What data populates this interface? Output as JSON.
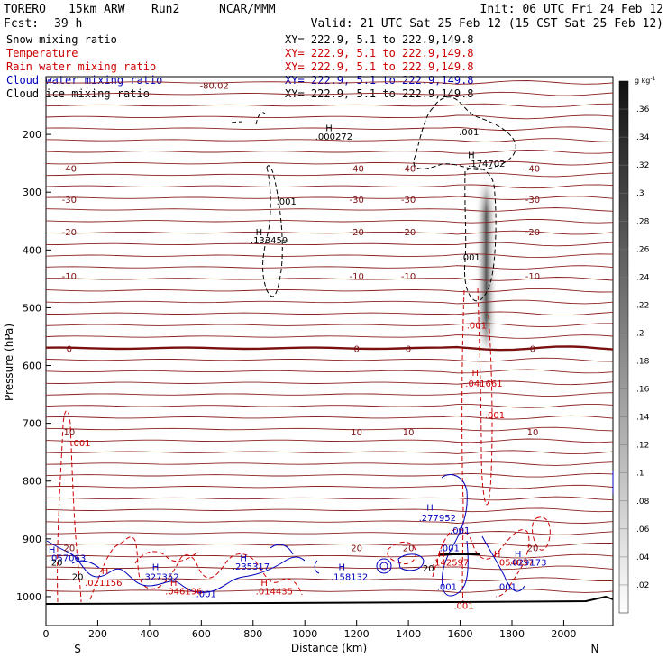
{
  "header": {
    "model": "TORERO",
    "resolution": "15km ARW",
    "run": "Run2",
    "org": "NCAR/MMM",
    "init": "Init: 06 UTC Fri 24 Feb 12",
    "fcst_label": "Fcst:",
    "fcst_value": "39 h",
    "valid": "Valid: 21 UTC Sat 25 Feb 12 (15 CST Sat 25 Feb 12)"
  },
  "legend": [
    {
      "label": "Snow mixing ratio",
      "xy": "XY= 222.9,  5.1 to 222.9,149.8",
      "color": "#000000"
    },
    {
      "label": "Temperature",
      "xy": "XY= 222.9,  5.1 to 222.9,149.8",
      "color": "#cc0000"
    },
    {
      "label": "Rain water mixing ratio",
      "xy": "XY= 222.9,  5.1 to 222.9,149.8",
      "color": "#cc0000"
    },
    {
      "label": "Cloud water mixing ratio",
      "xy": "XY= 222.9,  5.1 to 222.9,149.8",
      "color": "#0000bb"
    },
    {
      "label": "Cloud ice mixing ratio",
      "xy": "XY= 222.9,  5.1 to 222.9,149.8",
      "color": "#000000"
    }
  ],
  "colorbar": {
    "unit": "g kg",
    "unit_exp": "-1",
    "ticks": [
      ".02",
      ".04",
      ".06",
      ".08",
      ".1",
      ".12",
      ".14",
      ".16",
      ".18",
      ".2",
      ".22",
      ".24",
      ".26",
      ".28",
      ".3",
      ".32",
      ".34",
      ".36"
    ]
  },
  "chart_data": {
    "type": "contour-cross-section",
    "xlabel": "Distance (km)",
    "ylabel": "Pressure (hPa)",
    "x_ticks": [
      "0",
      "200",
      "400",
      "600",
      "800",
      "1000",
      "1200",
      "1400",
      "1600",
      "1800",
      "2000"
    ],
    "y_ticks": [
      "200",
      "300",
      "400",
      "500",
      "600",
      "700",
      "800",
      "900",
      "1000"
    ],
    "x_range": [
      0,
      2190
    ],
    "y_range": [
      1050,
      100
    ],
    "x_left_label": "S",
    "x_right_label": "N",
    "temperature_isotherms_C": [
      {
        "value": -80.02,
        "p": 115,
        "label": "-80.02"
      },
      {
        "value": -40,
        "p": 258,
        "label": "-40"
      },
      {
        "value": -30,
        "p": 312,
        "label": "-30"
      },
      {
        "value": -20,
        "p": 368,
        "label": "-20"
      },
      {
        "value": -10,
        "p": 445,
        "label": "-10"
      },
      {
        "value": 0,
        "p": 570,
        "label": "0"
      },
      {
        "value": 10,
        "p": 715,
        "label": "10"
      },
      {
        "value": 20,
        "p": 915,
        "label": "20"
      }
    ],
    "annotations": [
      {
        "text": "H",
        "x": 1080,
        "p": 188,
        "color": "black"
      },
      {
        "text": ".000272",
        "x": 1040,
        "p": 203,
        "color": "black"
      },
      {
        "text": ".001",
        "x": 1595,
        "p": 195,
        "color": "black"
      },
      {
        "text": "H",
        "x": 1630,
        "p": 235,
        "color": "black"
      },
      {
        "text": ".174702",
        "x": 1630,
        "p": 250,
        "color": "black"
      },
      {
        "text": ".001",
        "x": 890,
        "p": 315,
        "color": "black"
      },
      {
        "text": "H",
        "x": 810,
        "p": 368,
        "color": "black"
      },
      {
        "text": ".133459",
        "x": 790,
        "p": 382,
        "color": "black"
      },
      {
        "text": ".001",
        "x": 1600,
        "p": 412,
        "color": "black"
      },
      {
        "text": ".001",
        "x": 1625,
        "p": 530,
        "color": "#cc0000"
      },
      {
        "text": "H",
        "x": 1645,
        "p": 612,
        "color": "#cc0000"
      },
      {
        "text": ".041661",
        "x": 1620,
        "p": 630,
        "color": "#cc0000"
      },
      {
        "text": ".001",
        "x": 1695,
        "p": 685,
        "color": "#cc0000"
      },
      {
        "text": ".001",
        "x": 95,
        "p": 733,
        "color": "#cc0000"
      },
      {
        "text": "H",
        "x": 1470,
        "p": 845,
        "color": "#0000bb"
      },
      {
        "text": ".277952",
        "x": 1440,
        "p": 863,
        "color": "#0000bb"
      },
      {
        "text": ".001",
        "x": 1560,
        "p": 885,
        "color": "#0000bb"
      },
      {
        "text": ".001",
        "x": 1520,
        "p": 915,
        "color": "#0000bb"
      },
      {
        "text": "H",
        "x": 10,
        "p": 918,
        "color": "#0000bb"
      },
      {
        "text": ".057063",
        "x": 10,
        "p": 932,
        "color": "#0000bb"
      },
      {
        "text": "H",
        "x": 750,
        "p": 932,
        "color": "#0000bb"
      },
      {
        "text": ".235317",
        "x": 720,
        "p": 947,
        "color": "#0000bb"
      },
      {
        "text": "H",
        "x": 1130,
        "p": 948,
        "color": "#0000bb"
      },
      {
        "text": ".158132",
        "x": 1100,
        "p": 965,
        "color": "#0000bb"
      },
      {
        "text": "H",
        "x": 410,
        "p": 948,
        "color": "#0000bb"
      },
      {
        "text": ".327352",
        "x": 370,
        "p": 965,
        "color": "#0000bb"
      },
      {
        "text": "H",
        "x": 215,
        "p": 955,
        "color": "#cc0000"
      },
      {
        "text": ".021156",
        "x": 150,
        "p": 975,
        "color": "#cc0000"
      },
      {
        "text": "H",
        "x": 480,
        "p": 975,
        "color": "#cc0000"
      },
      {
        "text": ".046196",
        "x": 460,
        "p": 990,
        "color": "#cc0000"
      },
      {
        "text": ".001",
        "x": 580,
        "p": 995,
        "color": "#0000bb"
      },
      {
        "text": "H",
        "x": 830,
        "p": 975,
        "color": "#cc0000"
      },
      {
        "text": ".014435",
        "x": 810,
        "p": 990,
        "color": "#cc0000"
      },
      {
        "text": ".001",
        "x": 1510,
        "p": 982,
        "color": "#0000bb"
      },
      {
        "text": ".001",
        "x": 1740,
        "p": 982,
        "color": "#0000bb"
      },
      {
        "text": "H",
        "x": 1515,
        "p": 925,
        "color": "#cc0000"
      },
      {
        "text": ".142597",
        "x": 1490,
        "p": 940,
        "color": "#cc0000"
      },
      {
        "text": "H",
        "x": 1730,
        "p": 925,
        "color": "#cc0000"
      },
      {
        "text": ".054837",
        "x": 1740,
        "p": 940,
        "color": "#cc0000"
      },
      {
        "text": "H",
        "x": 1810,
        "p": 925,
        "color": "#0000bb"
      },
      {
        "text": ".029173",
        "x": 1790,
        "p": 940,
        "color": "#0000bb"
      },
      {
        "text": ".001",
        "x": 1575,
        "p": 1015,
        "color": "#cc0000"
      },
      {
        "text": "20",
        "x": 100,
        "p": 965,
        "color": "black"
      },
      {
        "text": "20",
        "x": 20,
        "p": 940,
        "color": "black"
      },
      {
        "text": "20",
        "x": 1455,
        "p": 950,
        "color": "black"
      }
    ]
  }
}
